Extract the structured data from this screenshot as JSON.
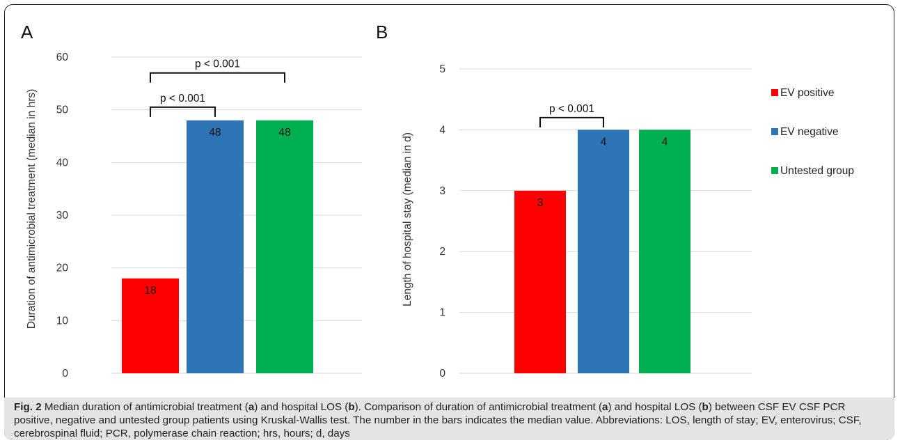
{
  "chart_data": [
    {
      "type": "bar",
      "panel": "A",
      "categories": [
        "EV positive",
        "EV negative",
        "Untested group"
      ],
      "values": [
        18,
        48,
        48
      ],
      "ylabel": "Duration of antimicrobial treatment (median in hrs)",
      "ylim": [
        0,
        60
      ],
      "yticks": [
        0,
        10,
        20,
        30,
        40,
        50,
        60
      ],
      "colors": [
        "#ff0000",
        "#2e75b6",
        "#00b050"
      ],
      "grid": true,
      "annotations": [
        {
          "text": "p < 0.001",
          "from": 0,
          "to": 1,
          "level": 50.5
        },
        {
          "text": "p < 0.001",
          "from": 0,
          "to": 2,
          "level": 57
        }
      ]
    },
    {
      "type": "bar",
      "panel": "B",
      "categories": [
        "EV positive",
        "EV negative",
        "Untested group"
      ],
      "values": [
        3,
        4,
        4
      ],
      "ylabel": "Length of hospital stay (median in d)",
      "ylim": [
        0,
        5
      ],
      "yticks": [
        0,
        1,
        2,
        3,
        4,
        5
      ],
      "colors": [
        "#ff0000",
        "#2e75b6",
        "#00b050"
      ],
      "grid": true,
      "annotations": [
        {
          "text": "p < 0.001",
          "from": 0,
          "to": 1,
          "level": 4.2
        }
      ]
    }
  ],
  "legend": {
    "placement": "right",
    "items": [
      {
        "label": "EV positive",
        "color": "#ff0000"
      },
      {
        "label": "EV negative",
        "color": "#2e75b6"
      },
      {
        "label": "Untested group",
        "color": "#00b050"
      }
    ]
  },
  "caption": {
    "label": "Fig. 2",
    "parts": [
      {
        "t": " Median duration of antimicrobial treatment (",
        "b": false
      },
      {
        "t": "a",
        "b": true
      },
      {
        "t": ") and hospital LOS (",
        "b": false
      },
      {
        "t": "b",
        "b": true
      },
      {
        "t": "). Comparison of duration of antimicrobial treatment (",
        "b": false
      },
      {
        "t": "a",
        "b": true
      },
      {
        "t": ") and hospital LOS (",
        "b": false
      },
      {
        "t": "b",
        "b": true
      },
      {
        "t": ") between CSF EV CSF PCR positive, negative and untested group patients using Kruskal-Wallis test. The number in the bars indicates the median value. Abbreviations: LOS, length of stay; EV, enterovirus; CSF, cerebrospinal fluid; PCR, polymerase chain reaction; hrs, hours; d, days",
        "b": false
      }
    ]
  }
}
